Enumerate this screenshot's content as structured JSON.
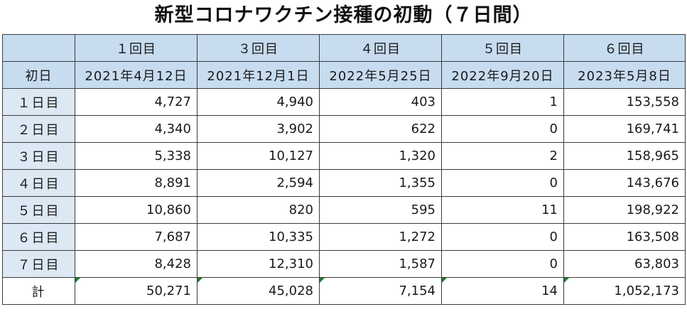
{
  "title": "新型コロナワクチン接種の初動（７日間）",
  "columns": [
    "１回目",
    "３回目",
    "４回目",
    "５回目",
    "６回目"
  ],
  "first_day_label": "初日",
  "first_days": [
    "2021年4月12日",
    "2021年12月1日",
    "2022年5月25日",
    "2022年9月20日",
    "2023年5月8日"
  ],
  "rows": [
    {
      "label": "１日目",
      "values": [
        "4,727",
        "4,940",
        "403",
        "1",
        "153,558"
      ]
    },
    {
      "label": "２日目",
      "values": [
        "4,340",
        "3,902",
        "622",
        "0",
        "169,741"
      ]
    },
    {
      "label": "３日目",
      "values": [
        "5,338",
        "10,127",
        "1,320",
        "2",
        "158,965"
      ]
    },
    {
      "label": "４日目",
      "values": [
        "8,891",
        "2,594",
        "1,355",
        "0",
        "143,676"
      ]
    },
    {
      "label": "５日目",
      "values": [
        "10,860",
        "820",
        "595",
        "11",
        "198,922"
      ]
    },
    {
      "label": "６日目",
      "values": [
        "7,687",
        "10,335",
        "1,272",
        "0",
        "163,508"
      ]
    },
    {
      "label": "７日目",
      "values": [
        "8,428",
        "12,310",
        "1,587",
        "0",
        "63,803"
      ]
    }
  ],
  "total": {
    "label": "計",
    "values": [
      "50,271",
      "45,028",
      "7,154",
      "14",
      "1,052,173"
    ]
  },
  "colors": {
    "header_bg": "#c7dcef",
    "rowlabel_bg": "#dce9f5",
    "error_marker": "#1e7b33"
  }
}
